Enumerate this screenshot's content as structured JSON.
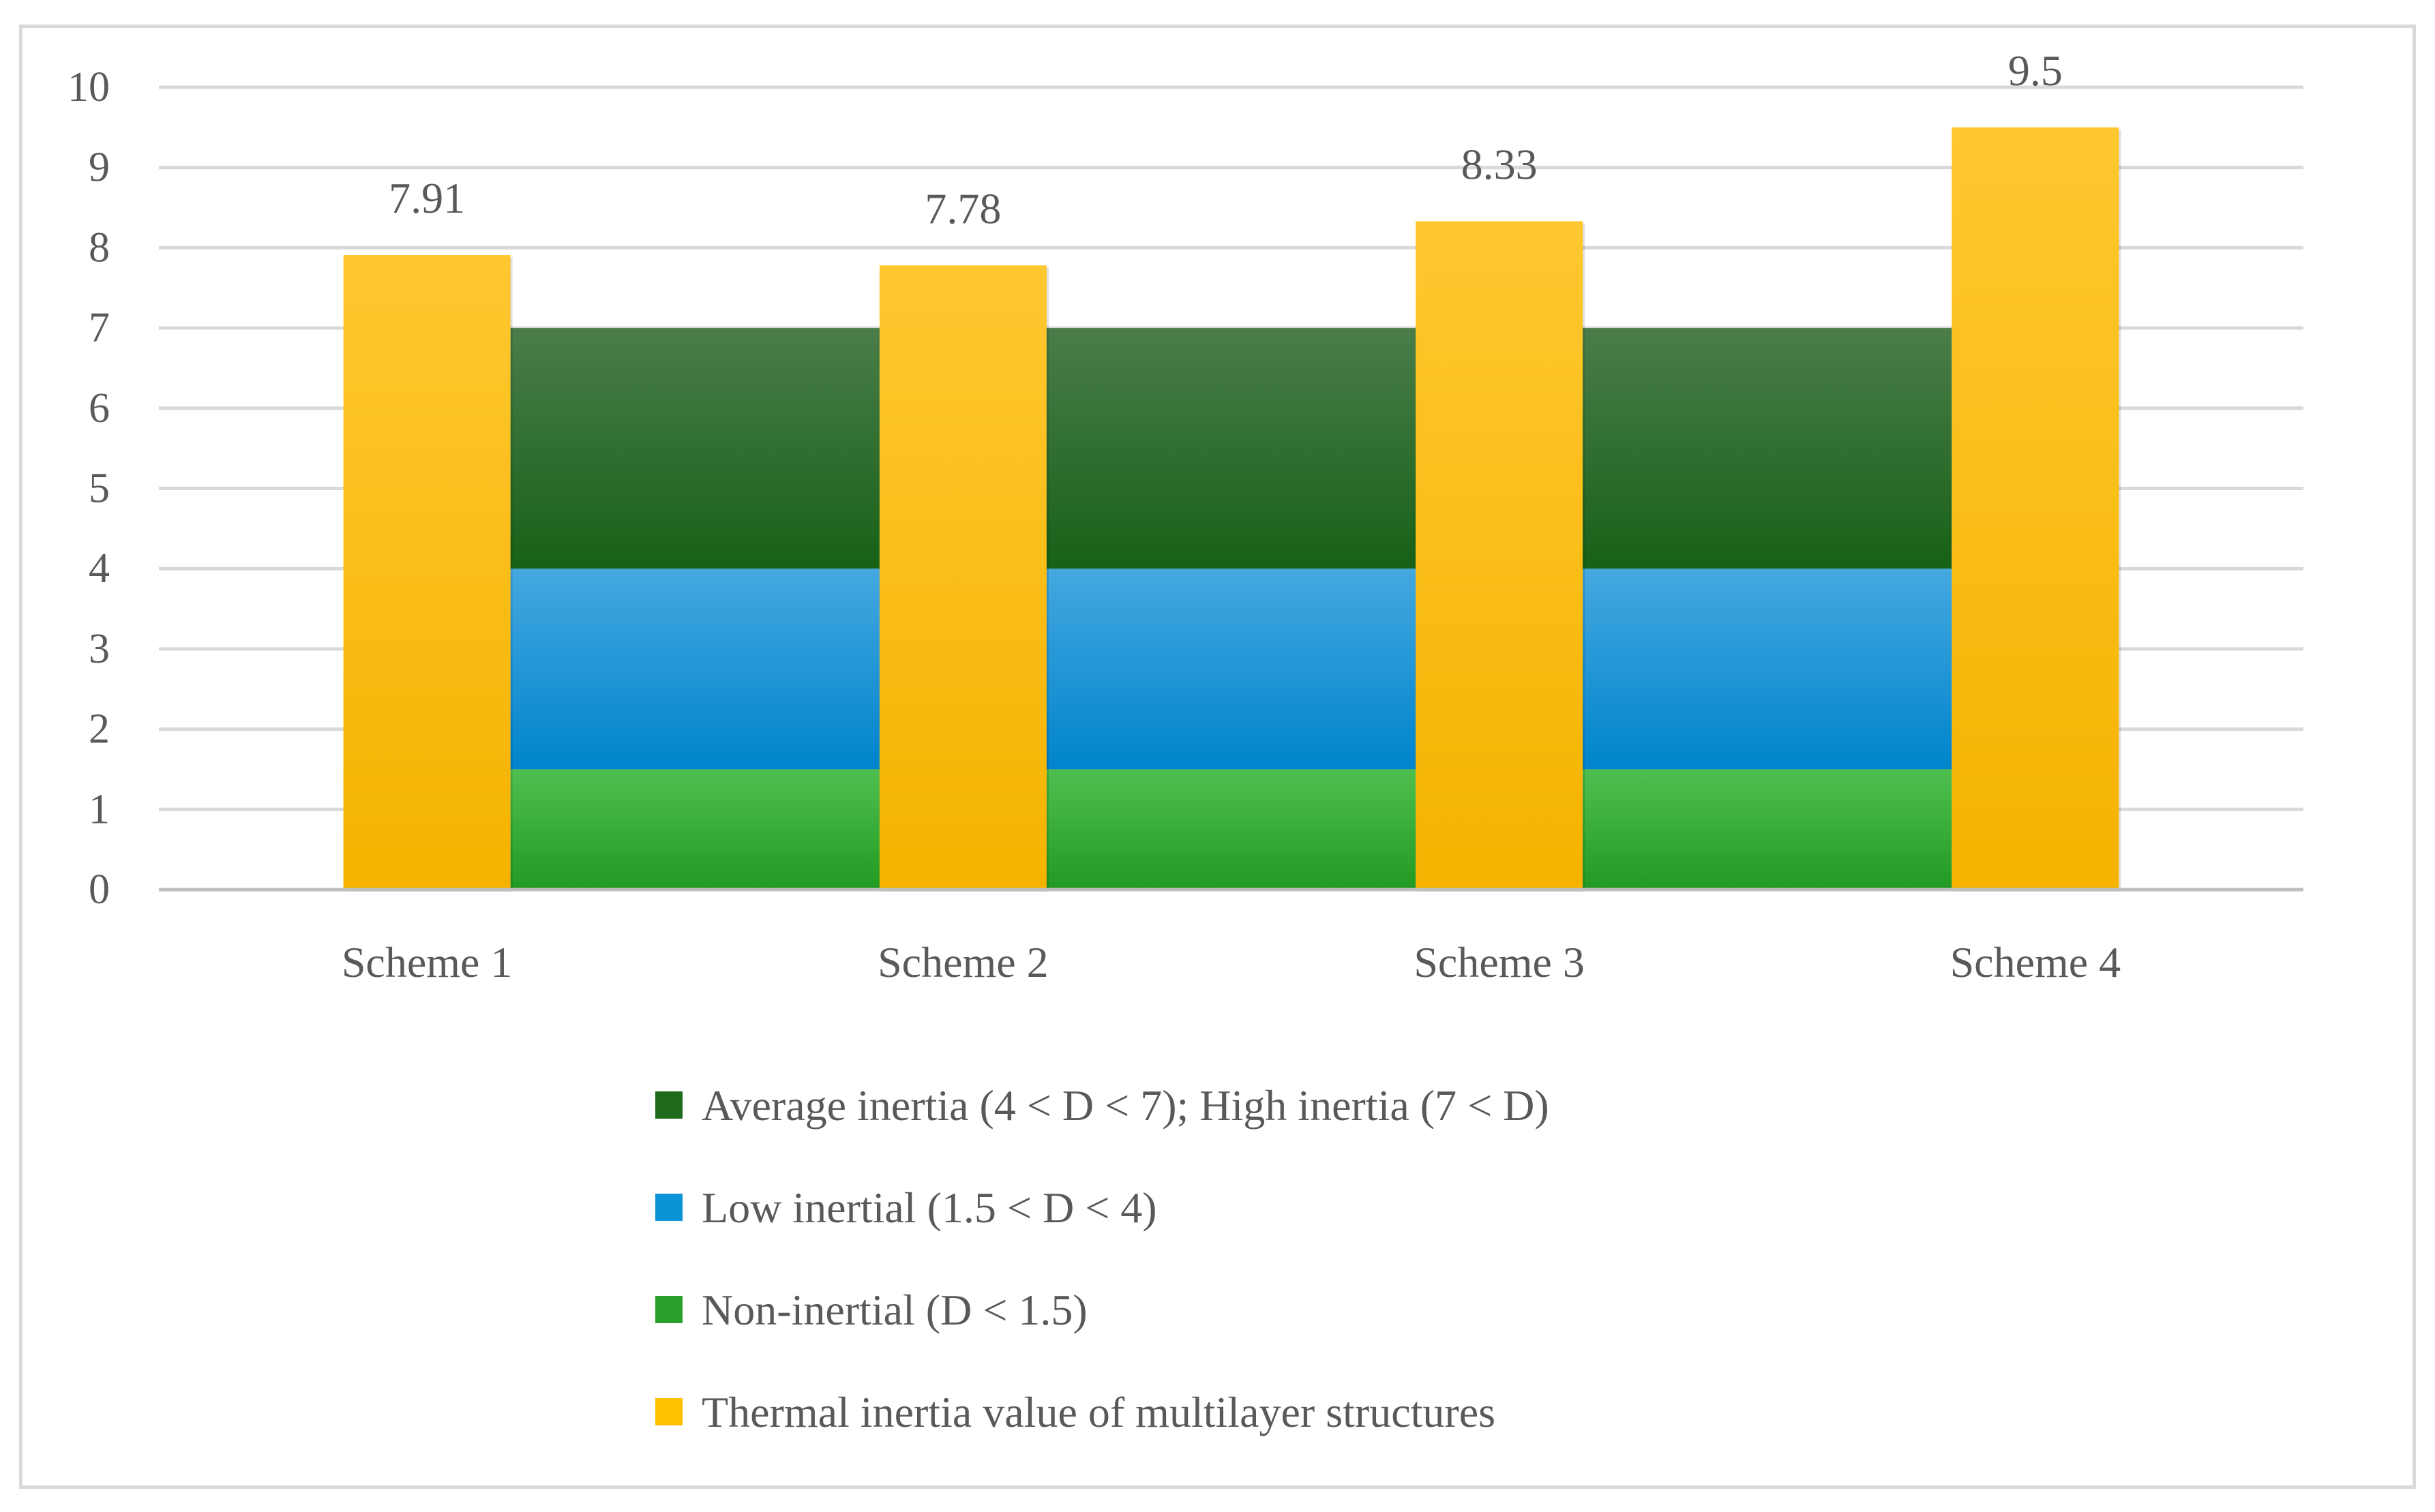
{
  "chart_data": {
    "type": "bar",
    "title": "",
    "xlabel": "",
    "ylabel": "",
    "ylim": [
      0,
      10
    ],
    "yticks": [
      0,
      1,
      2,
      3,
      4,
      5,
      6,
      7,
      8,
      9,
      10
    ],
    "grid": true,
    "legend_position": "bottom",
    "categories": [
      "Scheme 1",
      "Scheme 2",
      "Scheme 3",
      "Scheme 4"
    ],
    "bands": [
      {
        "name": "Non-inertial (D < 1.5)",
        "from": 0,
        "to": 1.5,
        "color": "#2ca02c",
        "color_light": "#4fbf4f",
        "color_dark": "#229a22"
      },
      {
        "name": "Low inertial (1.5 < D < 4)",
        "from": 1.5,
        "to": 4,
        "color": "#0a94d6",
        "color_light": "#44a8e0",
        "color_dark": "#0084cc"
      },
      {
        "name": "Average inertia (4 < D < 7); High inertia (7 < D)",
        "from": 4,
        "to": 7,
        "color": "#1e6b1e",
        "color_light": "#4a7d4a",
        "color_dark": "#176117"
      }
    ],
    "series": [
      {
        "name": "Thermal inertia value of multilayer structures",
        "values": [
          7.91,
          7.78,
          8.33,
          9.5
        ],
        "labels": [
          "7.91",
          "7.78",
          "8.33",
          "9.5"
        ],
        "color": "#ffc000"
      }
    ],
    "legend": [
      {
        "label": "Average inertia (4 < D < 7); High inertia (7 < D)",
        "color": "#1e6b1e"
      },
      {
        "label": "Low inertial (1.5 < D < 4)",
        "color": "#0a94d6"
      },
      {
        "label": "Non-inertial (D < 1.5)",
        "color": "#2ca02c"
      },
      {
        "label": "Thermal inertia value of multilayer structures",
        "color": "#ffc000"
      }
    ]
  }
}
